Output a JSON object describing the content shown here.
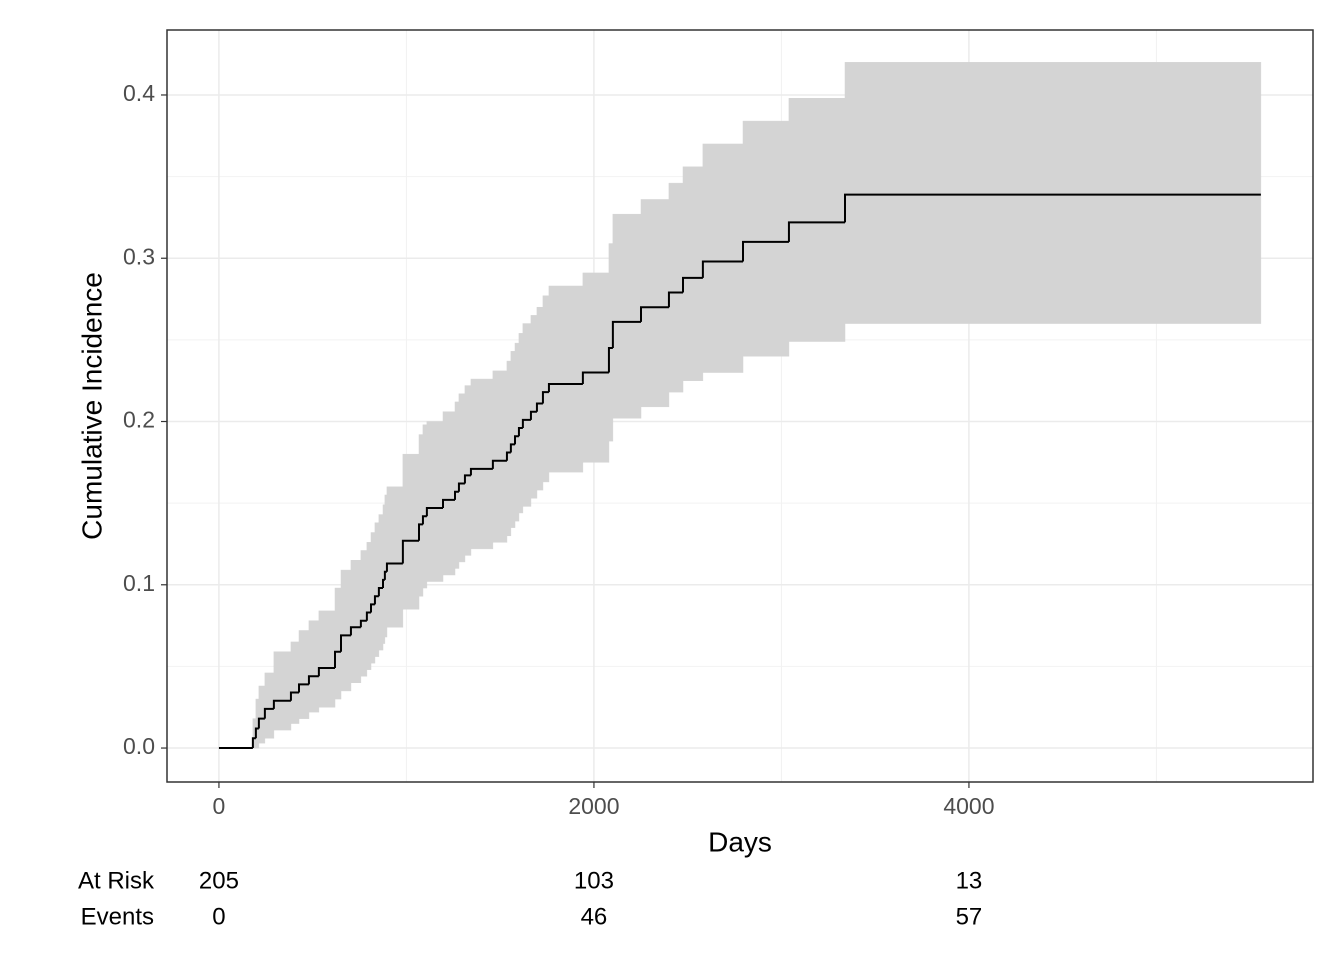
{
  "chart_data": {
    "type": "step",
    "x_label": "Days",
    "y_label": "Cumulative Incidence",
    "xlim": [
      -277,
      5835
    ],
    "ylim": [
      -0.0208,
      0.4398
    ],
    "xticks": [
      0,
      2000,
      4000
    ],
    "yticks": [
      {
        "value": 0,
        "label": "0.0"
      },
      {
        "value": 0.1,
        "label": "0.1"
      },
      {
        "value": 0.2,
        "label": "0.2"
      },
      {
        "value": 0.3,
        "label": "0.3"
      },
      {
        "value": 0.4,
        "label": "0.4"
      }
    ],
    "x_minor_ticks": [
      1000,
      3000,
      5000
    ],
    "y_minor_ticks": [
      0.05,
      0.15,
      0.25,
      0.35
    ],
    "grid": true,
    "line_color": "#000000",
    "band_color": "#d4d4d4",
    "x": [
      0,
      181,
      197,
      213,
      245,
      293,
      384,
      427,
      480,
      533,
      619,
      651,
      704,
      757,
      789,
      811,
      832,
      853,
      875,
      885,
      896,
      981,
      1067,
      1088,
      1109,
      1195,
      1259,
      1280,
      1312,
      1344,
      1461,
      1536,
      1557,
      1579,
      1600,
      1621,
      1664,
      1696,
      1728,
      1760,
      1941,
      2080,
      2101,
      2251,
      2400,
      2475,
      2581,
      2795,
      3040,
      3339,
      5557
    ],
    "estimate": [
      0,
      0.006,
      0.012,
      0.018,
      0.024,
      0.029,
      0.034,
      0.039,
      0.044,
      0.049,
      0.059,
      0.069,
      0.074,
      0.078,
      0.083,
      0.088,
      0.093,
      0.098,
      0.103,
      0.108,
      0.113,
      0.127,
      0.137,
      0.142,
      0.147,
      0.152,
      0.157,
      0.162,
      0.167,
      0.171,
      0.176,
      0.181,
      0.186,
      0.191,
      0.196,
      0.201,
      0.206,
      0.211,
      0.218,
      0.223,
      0.23,
      0.245,
      0.261,
      0.27,
      0.279,
      0.288,
      0.298,
      0.31,
      0.322,
      0.339,
      0.339
    ],
    "lower": [
      0,
      0.0,
      0.0,
      0.003,
      0.006,
      0.011,
      0.015,
      0.018,
      0.022,
      0.025,
      0.03,
      0.035,
      0.04,
      0.044,
      0.048,
      0.052,
      0.056,
      0.06,
      0.064,
      0.068,
      0.074,
      0.085,
      0.093,
      0.098,
      0.102,
      0.106,
      0.11,
      0.114,
      0.118,
      0.122,
      0.126,
      0.13,
      0.135,
      0.139,
      0.144,
      0.148,
      0.153,
      0.158,
      0.163,
      0.169,
      0.175,
      0.188,
      0.202,
      0.209,
      0.218,
      0.225,
      0.23,
      0.24,
      0.249,
      0.26,
      0.26
    ],
    "upper": [
      0,
      0.018,
      0.03,
      0.038,
      0.046,
      0.059,
      0.065,
      0.072,
      0.078,
      0.084,
      0.098,
      0.109,
      0.115,
      0.121,
      0.126,
      0.132,
      0.138,
      0.143,
      0.149,
      0.155,
      0.16,
      0.18,
      0.192,
      0.198,
      0.2,
      0.206,
      0.212,
      0.217,
      0.222,
      0.226,
      0.231,
      0.237,
      0.243,
      0.248,
      0.254,
      0.26,
      0.265,
      0.27,
      0.277,
      0.283,
      0.291,
      0.309,
      0.327,
      0.336,
      0.346,
      0.356,
      0.37,
      0.384,
      0.398,
      0.42,
      0.42
    ],
    "risk_table": {
      "labels": [
        "At Risk",
        "Events"
      ],
      "times": [
        0,
        2000,
        4000
      ],
      "rows": [
        [
          205,
          103,
          13
        ],
        [
          0,
          46,
          57
        ]
      ]
    }
  }
}
